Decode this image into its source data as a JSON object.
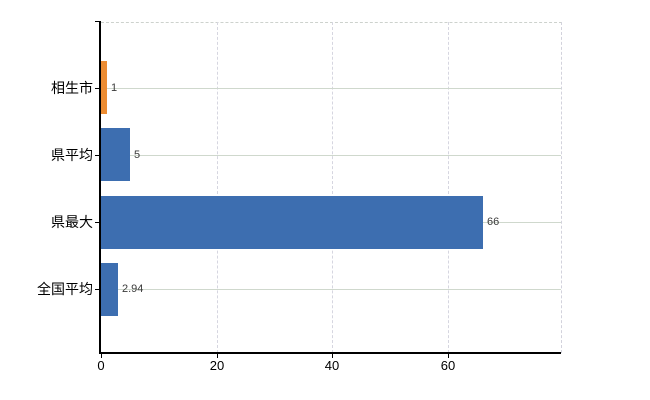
{
  "chart_data": {
    "type": "bar",
    "orientation": "horizontal",
    "title": "",
    "xlabel": "",
    "ylabel": "",
    "categories": [
      "相生市",
      "県平均",
      "県最大",
      "全国平均"
    ],
    "values": [
      1,
      5,
      66,
      2.94
    ],
    "value_labels": [
      "1",
      "5",
      "66",
      "2.94"
    ],
    "bar_colors": [
      "#ec8c32",
      "#3d6eb0",
      "#3d6eb0",
      "#3d6eb0"
    ],
    "x_ticks": [
      0,
      20,
      40,
      60
    ],
    "x_tick_labels": [
      "0",
      "20",
      "40",
      "60"
    ],
    "xlim": [
      0,
      79.5
    ],
    "grid": true,
    "grid_vertical_style": "dashed",
    "grid_horizontal_style": "solid",
    "legend": false
  },
  "colors": {
    "bar_blue": "#3d6eb0",
    "bar_orange": "#ec8c32",
    "axis": "#000000",
    "gridline_horizontal": "#cfd8cd",
    "gridline_vertical": "#d6d6e0",
    "plot_border_dashed": "#cdd2cd",
    "value_label_text": "#3a3a3a",
    "category_label_text": "#000000",
    "background": "#ffffff"
  }
}
